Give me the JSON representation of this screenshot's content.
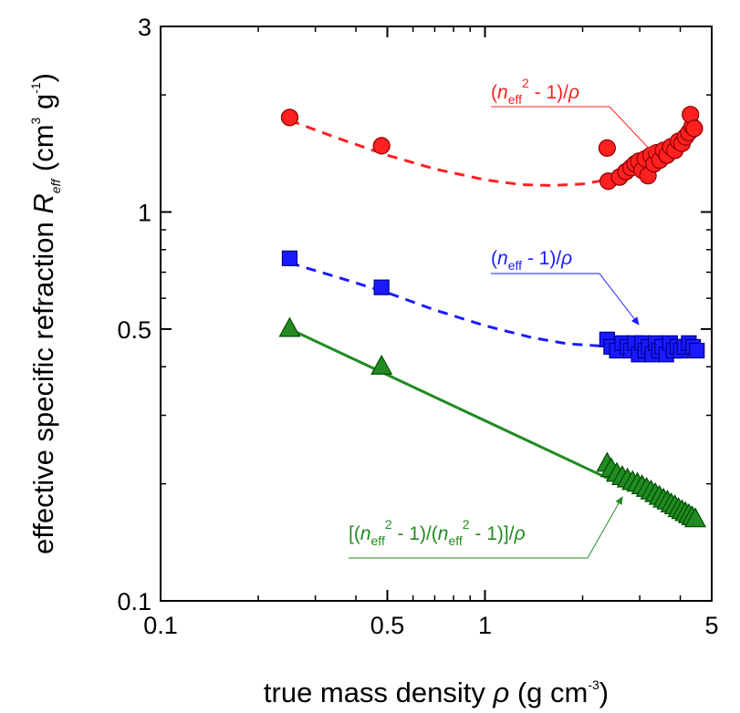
{
  "chart_data": {
    "type": "scatter",
    "xscale": "log",
    "yscale": "log",
    "xlim": [
      0.1,
      5
    ],
    "ylim": [
      0.1,
      3
    ],
    "grid": false,
    "xticks": [
      {
        "value": 0.1,
        "label": "0.1"
      },
      {
        "value": 0.5,
        "label": "0.5"
      },
      {
        "value": 1,
        "label": "1"
      },
      {
        "value": 5,
        "label": "5"
      }
    ],
    "yticks": [
      {
        "value": 0.1,
        "label": "0.1"
      },
      {
        "value": 0.5,
        "label": "0.5"
      },
      {
        "value": 1,
        "label": "1"
      },
      {
        "value": 3,
        "label": "3"
      }
    ],
    "xlabel": {
      "text": "true mass density ",
      "symbol": "ρ",
      "unit_open": " (g cm",
      "sup": "-3",
      "unit_close": ")"
    },
    "ylabel": {
      "text": "effective specific refraction ",
      "symbol": "R",
      "sub": "eff",
      "unit_open": " (cm",
      "sup1": "3",
      "mid": " g",
      "sup2": "-1",
      "unit_close": ")"
    },
    "series": [
      {
        "marker": "circle",
        "color": "#ff2020",
        "stroke": "#8b0000",
        "points": [
          [
            0.25,
            1.75
          ],
          [
            0.48,
            1.48
          ],
          [
            2.38,
            1.46
          ],
          [
            2.4,
            1.2
          ],
          [
            2.6,
            1.23
          ],
          [
            2.72,
            1.27
          ],
          [
            2.82,
            1.3
          ],
          [
            2.9,
            1.33
          ],
          [
            2.98,
            1.35
          ],
          [
            3.05,
            1.28
          ],
          [
            3.12,
            1.37
          ],
          [
            3.18,
            1.24
          ],
          [
            3.25,
            1.4
          ],
          [
            3.32,
            1.33
          ],
          [
            3.38,
            1.42
          ],
          [
            3.46,
            1.36
          ],
          [
            3.55,
            1.44
          ],
          [
            3.64,
            1.4
          ],
          [
            3.74,
            1.47
          ],
          [
            3.85,
            1.44
          ],
          [
            3.95,
            1.52
          ],
          [
            4.05,
            1.5
          ],
          [
            4.15,
            1.56
          ],
          [
            4.25,
            1.6
          ],
          [
            4.35,
            1.66
          ],
          [
            4.3,
            1.78
          ],
          [
            4.42,
            1.64
          ]
        ]
      },
      {
        "marker": "square",
        "color": "#1a1aff",
        "stroke": "#00008b",
        "points": [
          [
            0.25,
            0.76
          ],
          [
            0.48,
            0.64
          ],
          [
            2.38,
            0.47
          ],
          [
            2.45,
            0.45
          ],
          [
            2.55,
            0.44
          ],
          [
            2.65,
            0.46
          ],
          [
            2.75,
            0.45
          ],
          [
            2.82,
            0.44
          ],
          [
            2.9,
            0.46
          ],
          [
            2.98,
            0.43
          ],
          [
            3.05,
            0.46
          ],
          [
            3.12,
            0.44
          ],
          [
            3.2,
            0.45
          ],
          [
            3.28,
            0.43
          ],
          [
            3.36,
            0.46
          ],
          [
            3.44,
            0.44
          ],
          [
            3.52,
            0.45
          ],
          [
            3.62,
            0.43
          ],
          [
            3.72,
            0.46
          ],
          [
            3.82,
            0.44
          ],
          [
            3.92,
            0.45
          ],
          [
            4.02,
            0.44
          ],
          [
            4.12,
            0.45
          ],
          [
            4.25,
            0.46
          ],
          [
            4.38,
            0.45
          ],
          [
            4.5,
            0.44
          ]
        ]
      },
      {
        "marker": "triangle",
        "color": "#228b22",
        "stroke": "#004d00",
        "points": [
          [
            0.25,
            0.5
          ],
          [
            0.48,
            0.4
          ],
          [
            2.38,
            0.225
          ],
          [
            2.45,
            0.218
          ],
          [
            2.55,
            0.212
          ],
          [
            2.65,
            0.208
          ],
          [
            2.75,
            0.205
          ],
          [
            2.85,
            0.202
          ],
          [
            2.95,
            0.2
          ],
          [
            3.05,
            0.197
          ],
          [
            3.15,
            0.194
          ],
          [
            3.25,
            0.191
          ],
          [
            3.35,
            0.188
          ],
          [
            3.45,
            0.185
          ],
          [
            3.55,
            0.182
          ],
          [
            3.65,
            0.18
          ],
          [
            3.75,
            0.177
          ],
          [
            3.85,
            0.175
          ],
          [
            3.95,
            0.172
          ],
          [
            4.05,
            0.17
          ],
          [
            4.15,
            0.168
          ],
          [
            4.25,
            0.166
          ],
          [
            4.35,
            0.164
          ],
          [
            4.45,
            0.162
          ]
        ]
      }
    ],
    "fits": [
      {
        "style": "dashed",
        "color": "#ff2020",
        "points": [
          [
            0.25,
            1.72
          ],
          [
            0.35,
            1.55
          ],
          [
            0.5,
            1.4
          ],
          [
            0.7,
            1.29
          ],
          [
            1.0,
            1.21
          ],
          [
            1.3,
            1.175
          ],
          [
            1.6,
            1.17
          ],
          [
            2.0,
            1.18
          ],
          [
            2.5,
            1.22
          ],
          [
            3.0,
            1.3
          ],
          [
            3.5,
            1.4
          ],
          [
            4.0,
            1.52
          ],
          [
            4.5,
            1.62
          ]
        ]
      },
      {
        "style": "dashed",
        "color": "#1a1aff",
        "points": [
          [
            0.25,
            0.74
          ],
          [
            0.35,
            0.68
          ],
          [
            0.5,
            0.62
          ],
          [
            0.7,
            0.56
          ],
          [
            1.0,
            0.51
          ],
          [
            1.4,
            0.475
          ],
          [
            1.8,
            0.458
          ],
          [
            2.3,
            0.452
          ]
        ]
      },
      {
        "style": "solid",
        "color": "#228b22",
        "points": [
          [
            0.25,
            0.5
          ],
          [
            4.45,
            0.162
          ]
        ]
      }
    ],
    "annotations": [
      {
        "color": "#ff2020",
        "parts": {
          "a": "(",
          "n": "n",
          "sub": "eff",
          "sup": "2",
          "b": " - 1)/",
          "rho": "ρ"
        }
      },
      {
        "color": "#1a1aff",
        "parts": {
          "a": "(",
          "n": "n",
          "sub": "eff",
          "b": " - 1)/",
          "rho": "ρ"
        }
      },
      {
        "color": "#228b22",
        "parts": {
          "a": "[(",
          "n": "n",
          "sub": "eff",
          "sup": "2",
          "b": " - 1)/(",
          "n2": "n",
          "sub2": "eff",
          "sup2": "2",
          "c": " - 1)]/",
          "rho": "ρ"
        }
      }
    ]
  }
}
